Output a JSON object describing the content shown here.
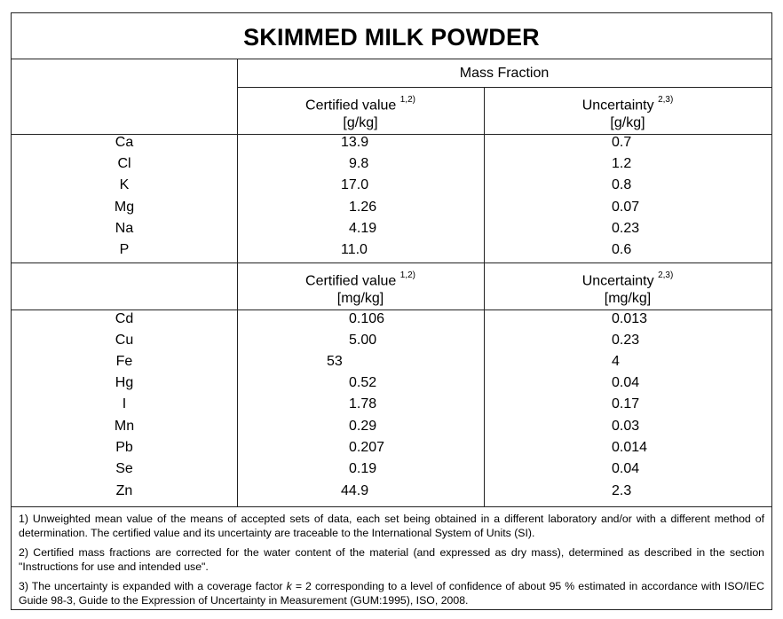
{
  "title": "SKIMMED MILK POWDER",
  "header": {
    "group_label": "Mass Fraction",
    "section1": {
      "certified_label": "Certified value",
      "certified_sup": "1,2)",
      "certified_unit": "[g/kg]",
      "uncertainty_label": "Uncertainty",
      "uncertainty_sup": "2,3)",
      "uncertainty_unit": "[g/kg]"
    },
    "section2": {
      "certified_label": "Certified value",
      "certified_sup": "1,2)",
      "certified_unit": "[mg/kg]",
      "uncertainty_label": "Uncertainty",
      "uncertainty_sup": "2,3)",
      "uncertainty_unit": "[mg/kg]"
    }
  },
  "rows_gkg": [
    {
      "element": "Ca",
      "value": "13.9",
      "uncertainty": "0.7"
    },
    {
      "element": "Cl",
      "value": "9.8",
      "uncertainty": "1.2"
    },
    {
      "element": "K",
      "value": "17.0",
      "uncertainty": "0.8"
    },
    {
      "element": "Mg",
      "value": "1.26",
      "uncertainty": "0.07"
    },
    {
      "element": "Na",
      "value": "4.19",
      "uncertainty": "0.23"
    },
    {
      "element": "P",
      "value": "11.0",
      "uncertainty": "0.6"
    }
  ],
  "rows_mgkg": [
    {
      "element": "Cd",
      "value": "0.106",
      "uncertainty": "0.013"
    },
    {
      "element": "Cu",
      "value": "5.00",
      "uncertainty": "0.23"
    },
    {
      "element": "Fe",
      "value": "53",
      "uncertainty": "4"
    },
    {
      "element": "Hg",
      "value": "0.52",
      "uncertainty": "0.04"
    },
    {
      "element": "I",
      "value": "1.78",
      "uncertainty": "0.17"
    },
    {
      "element": "Mn",
      "value": "0.29",
      "uncertainty": "0.03"
    },
    {
      "element": "Pb",
      "value": "0.207",
      "uncertainty": "0.014"
    },
    {
      "element": "Se",
      "value": "0.19",
      "uncertainty": "0.04"
    },
    {
      "element": "Zn",
      "value": "44.9",
      "uncertainty": "2.3"
    }
  ],
  "notes": {
    "note1": "1) Unweighted mean value of the means of accepted sets of data, each set being obtained in a different laboratory and/or with a different method of determination. The certified value and its uncertainty are traceable to the International System of Units (SI).",
    "note2": "2) Certified mass fractions are corrected for the water content of the material (and expressed as dry mass), determined as described in the section \"Instructions for use and intended use\".",
    "note3_before": "3) The uncertainty is expanded with a coverage factor ",
    "note3_k": "k",
    "note3_after": " = 2 corresponding to a level of confidence of about 95 % estimated in accordance with ISO/IEC Guide 98-3, Guide to the Expression of Uncertainty in Measurement (GUM:1995), ISO, 2008."
  }
}
